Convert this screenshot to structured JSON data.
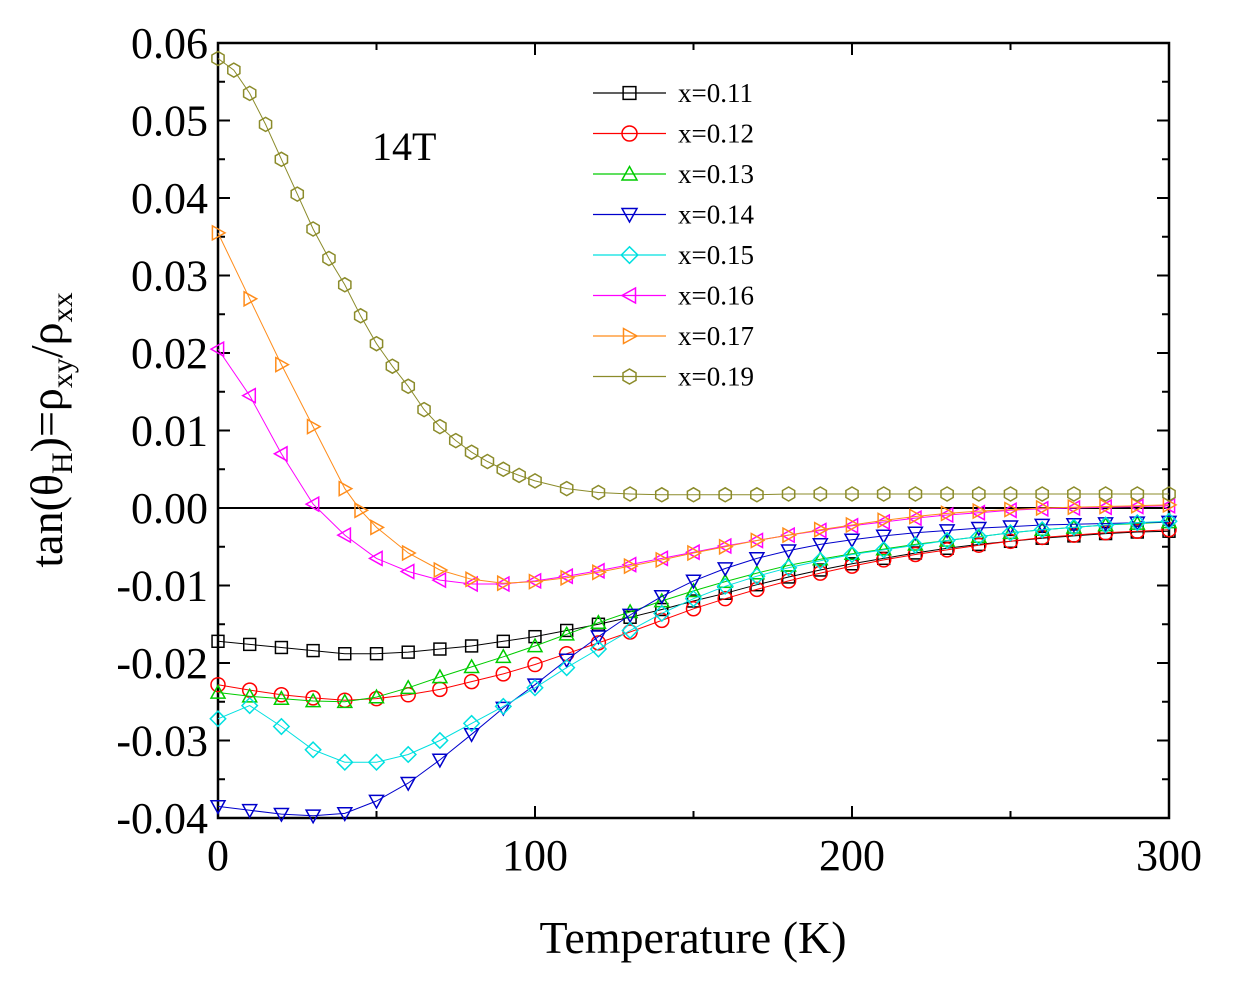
{
  "chart_data": {
    "type": "scatter",
    "title": "",
    "annotation": "14T",
    "xlabel": "Temperature (K)",
    "ylabel_parts": {
      "prefix": "tan(θ",
      "sub_h": "H",
      "mid": ")=ρ",
      "sub_xy": "xy",
      "slash": "/ρ",
      "sub_xx": "xx"
    },
    "xlim": [
      0,
      300
    ],
    "ylim": [
      -0.04,
      0.06
    ],
    "xticks": [
      0,
      100,
      200,
      300
    ],
    "xtick_labels": [
      "0",
      "100",
      "200",
      "300"
    ],
    "yticks": [
      -0.04,
      -0.03,
      -0.02,
      -0.01,
      0.0,
      0.01,
      0.02,
      0.03,
      0.04,
      0.05,
      0.06
    ],
    "ytick_labels": [
      "-0.04",
      "-0.03",
      "-0.02",
      "-0.01",
      "0.00",
      "0.01",
      "0.02",
      "0.03",
      "0.04",
      "0.05",
      "0.06"
    ],
    "zero_line": true,
    "legend_position": "top-right",
    "series": [
      {
        "name": "x=0.11",
        "marker": "square",
        "color": "#000000",
        "x": [
          0,
          10,
          20,
          30,
          40,
          50,
          60,
          70,
          80,
          90,
          100,
          110,
          120,
          130,
          140,
          150,
          160,
          170,
          180,
          190,
          200,
          210,
          220,
          230,
          240,
          250,
          260,
          270,
          280,
          290,
          300
        ],
        "y": [
          -0.0172,
          -0.0176,
          -0.018,
          -0.0184,
          -0.0188,
          -0.0188,
          -0.0186,
          -0.0182,
          -0.0178,
          -0.0172,
          -0.0166,
          -0.0158,
          -0.015,
          -0.0141,
          -0.0131,
          -0.012,
          -0.011,
          -0.0099,
          -0.0089,
          -0.008,
          -0.0072,
          -0.0065,
          -0.0058,
          -0.0052,
          -0.0047,
          -0.0043,
          -0.0039,
          -0.0036,
          -0.0033,
          -0.0031,
          -0.003
        ]
      },
      {
        "name": "x=0.12",
        "marker": "circle",
        "color": "#ff0000",
        "x": [
          0,
          10,
          20,
          30,
          40,
          50,
          60,
          70,
          80,
          90,
          100,
          110,
          120,
          130,
          140,
          150,
          160,
          170,
          180,
          190,
          200,
          210,
          220,
          230,
          240,
          250,
          260,
          270,
          280,
          290,
          300
        ],
        "y": [
          -0.0228,
          -0.0235,
          -0.0241,
          -0.0245,
          -0.0248,
          -0.0246,
          -0.0241,
          -0.0234,
          -0.0224,
          -0.0214,
          -0.0202,
          -0.0188,
          -0.0174,
          -0.016,
          -0.0145,
          -0.013,
          -0.0117,
          -0.0105,
          -0.0094,
          -0.0084,
          -0.0075,
          -0.0067,
          -0.006,
          -0.0054,
          -0.0048,
          -0.0043,
          -0.0038,
          -0.0035,
          -0.0032,
          -0.003,
          -0.0028
        ]
      },
      {
        "name": "x=0.13",
        "marker": "triangle-up",
        "color": "#00cc00",
        "x": [
          0,
          10,
          20,
          30,
          40,
          50,
          60,
          70,
          80,
          90,
          100,
          110,
          120,
          130,
          140,
          150,
          160,
          170,
          180,
          190,
          200,
          210,
          220,
          230,
          240,
          250,
          260,
          270,
          280,
          290,
          300
        ],
        "y": [
          -0.0238,
          -0.0243,
          -0.0246,
          -0.0249,
          -0.025,
          -0.0244,
          -0.0232,
          -0.0218,
          -0.0205,
          -0.0192,
          -0.0178,
          -0.0163,
          -0.0148,
          -0.0134,
          -0.012,
          -0.0107,
          -0.0095,
          -0.0084,
          -0.0074,
          -0.0066,
          -0.0059,
          -0.0053,
          -0.0047,
          -0.0042,
          -0.0037,
          -0.0032,
          -0.0028,
          -0.0025,
          -0.0022,
          -0.002,
          -0.0018
        ]
      },
      {
        "name": "x=0.14",
        "marker": "triangle-down",
        "color": "#0000cc",
        "x": [
          0,
          10,
          20,
          30,
          40,
          50,
          60,
          70,
          80,
          90,
          100,
          110,
          120,
          130,
          140,
          150,
          160,
          170,
          180,
          190,
          200,
          210,
          220,
          230,
          240,
          250,
          260,
          270,
          280,
          290,
          300
        ],
        "y": [
          -0.0385,
          -0.039,
          -0.0395,
          -0.0397,
          -0.0394,
          -0.0378,
          -0.0355,
          -0.0325,
          -0.0292,
          -0.0258,
          -0.0228,
          -0.0196,
          -0.0166,
          -0.0138,
          -0.0114,
          -0.0094,
          -0.0078,
          -0.0065,
          -0.0055,
          -0.0047,
          -0.0041,
          -0.0036,
          -0.0032,
          -0.0029,
          -0.0026,
          -0.0024,
          -0.0022,
          -0.0021,
          -0.002,
          -0.0019,
          -0.0018
        ]
      },
      {
        "name": "x=0.15",
        "marker": "diamond",
        "color": "#00e0e0",
        "x": [
          0,
          10,
          20,
          30,
          40,
          50,
          60,
          70,
          80,
          90,
          100,
          110,
          120,
          130,
          140,
          150,
          160,
          170,
          180,
          190,
          200,
          210,
          220,
          230,
          240,
          250,
          260,
          270,
          280,
          290,
          300
        ],
        "y": [
          -0.0272,
          -0.0255,
          -0.0282,
          -0.0312,
          -0.0328,
          -0.0328,
          -0.0318,
          -0.03,
          -0.0278,
          -0.0256,
          -0.0232,
          -0.0206,
          -0.0182,
          -0.0158,
          -0.0136,
          -0.0117,
          -0.0101,
          -0.0088,
          -0.0077,
          -0.0068,
          -0.006,
          -0.0054,
          -0.0048,
          -0.0042,
          -0.0037,
          -0.0032,
          -0.0028,
          -0.0025,
          -0.0022,
          -0.0019,
          -0.0017
        ]
      },
      {
        "name": "x=0.16",
        "marker": "triangle-left",
        "color": "#ff00ff",
        "x": [
          0,
          10,
          20,
          30,
          40,
          50,
          60,
          70,
          80,
          90,
          100,
          110,
          120,
          130,
          140,
          150,
          160,
          170,
          180,
          190,
          200,
          210,
          220,
          230,
          240,
          250,
          260,
          270,
          280,
          290,
          300
        ],
        "y": [
          0.0205,
          0.0145,
          0.007,
          0.0005,
          -0.0035,
          -0.0065,
          -0.0082,
          -0.0093,
          -0.0098,
          -0.0098,
          -0.0094,
          -0.0088,
          -0.0081,
          -0.0073,
          -0.0065,
          -0.0057,
          -0.0049,
          -0.0042,
          -0.0035,
          -0.0029,
          -0.0023,
          -0.0018,
          -0.0013,
          -0.0009,
          -0.0006,
          -0.0003,
          -0.0001,
          0.0,
          0.0001,
          0.0002,
          0.0003
        ]
      },
      {
        "name": "x=0.17",
        "marker": "triangle-right",
        "color": "#ff8c1a",
        "x": [
          0,
          10,
          20,
          30,
          40,
          45,
          50,
          60,
          70,
          80,
          90,
          100,
          110,
          120,
          130,
          140,
          150,
          160,
          170,
          180,
          190,
          200,
          210,
          220,
          230,
          240,
          250,
          260,
          270,
          280,
          290,
          300
        ],
        "y": [
          0.0355,
          0.027,
          0.0185,
          0.0105,
          0.0025,
          -0.0003,
          -0.0025,
          -0.0058,
          -0.008,
          -0.0092,
          -0.0097,
          -0.0095,
          -0.009,
          -0.0083,
          -0.0075,
          -0.0067,
          -0.0058,
          -0.005,
          -0.0042,
          -0.0035,
          -0.0028,
          -0.0022,
          -0.0016,
          -0.0011,
          -0.0007,
          -0.0004,
          -0.0002,
          0.0,
          0.0001,
          0.0002,
          0.0003,
          0.0004
        ]
      },
      {
        "name": "x=0.19",
        "marker": "hexagon",
        "color": "#8b8b2a",
        "x": [
          0,
          5,
          10,
          15,
          20,
          25,
          30,
          35,
          40,
          45,
          50,
          55,
          60,
          65,
          70,
          75,
          80,
          85,
          90,
          95,
          100,
          110,
          120,
          130,
          140,
          150,
          160,
          170,
          180,
          190,
          200,
          210,
          220,
          230,
          240,
          250,
          260,
          270,
          280,
          290,
          300
        ],
        "y": [
          0.058,
          0.0565,
          0.0535,
          0.0495,
          0.045,
          0.0405,
          0.036,
          0.0322,
          0.0288,
          0.0248,
          0.0212,
          0.0183,
          0.0157,
          0.0127,
          0.0105,
          0.0087,
          0.0072,
          0.006,
          0.005,
          0.0042,
          0.0035,
          0.0025,
          0.002,
          0.0018,
          0.0017,
          0.0017,
          0.0017,
          0.0017,
          0.0018,
          0.0018,
          0.0018,
          0.0018,
          0.0018,
          0.0018,
          0.0018,
          0.0018,
          0.0018,
          0.0018,
          0.0018,
          0.0018,
          0.0018
        ]
      }
    ]
  }
}
